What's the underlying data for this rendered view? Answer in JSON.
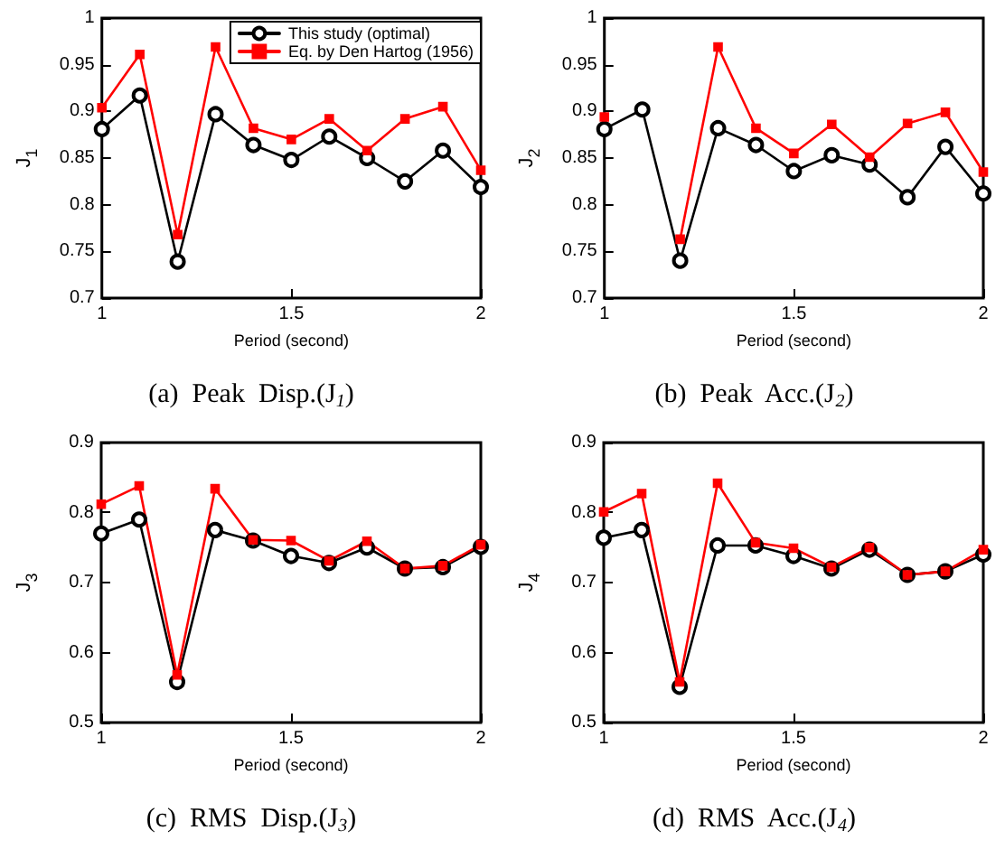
{
  "chart_data": [
    {
      "type": "line",
      "title": "(a)  Peak  Disp.(J$_{1}$)",
      "xlabel": "Period (second)",
      "ylabel": "J$_{1}$",
      "x": [
        1,
        1.1,
        1.2,
        1.3,
        1.4,
        1.5,
        1.6,
        1.7,
        1.8,
        1.9,
        2
      ],
      "xlim": [
        1,
        2
      ],
      "xticks": [
        1,
        1.5,
        2
      ],
      "ylim": [
        0.7,
        1
      ],
      "yticks": [
        0.7,
        0.75,
        0.8,
        0.85,
        0.9,
        0.95,
        1
      ],
      "legend": "top right",
      "series": [
        {
          "name": "This study (optimal)",
          "color": "#000000",
          "marker": "circle",
          "values": [
            0.881,
            0.917,
            0.739,
            0.897,
            0.864,
            0.848,
            0.873,
            0.85,
            0.825,
            0.858,
            0.819
          ]
        },
        {
          "name": "Eq. by Den Hartog (1956)",
          "color": "#ff0000",
          "marker": "square",
          "values": [
            0.904,
            0.961,
            0.768,
            0.969,
            0.882,
            0.87,
            0.892,
            0.858,
            0.892,
            0.905,
            0.837
          ]
        }
      ]
    },
    {
      "type": "line",
      "title": "(b)  Peak  Acc.(J$_{2}$)",
      "xlabel": "Period (second)",
      "ylabel": "J$_{2}$",
      "x": [
        1,
        1.1,
        1.2,
        1.3,
        1.4,
        1.5,
        1.6,
        1.7,
        1.8,
        1.9,
        2
      ],
      "xlim": [
        1,
        2
      ],
      "xticks": [
        1,
        1.5,
        2
      ],
      "ylim": [
        0.7,
        1
      ],
      "yticks": [
        0.7,
        0.75,
        0.8,
        0.85,
        0.9,
        0.95,
        1
      ],
      "series": [
        {
          "color": "#000000",
          "marker": "circle",
          "values": [
            0.881,
            0.902,
            0.74,
            0.882,
            0.864,
            0.836,
            0.853,
            0.843,
            0.808,
            0.862,
            0.812
          ]
        },
        {
          "color": "#ff0000",
          "marker": "square",
          "values": [
            0.894,
            null,
            0.763,
            0.969,
            0.882,
            0.855,
            0.886,
            0.851,
            0.887,
            0.899,
            0.835
          ]
        }
      ]
    },
    {
      "type": "line",
      "title": "(c)  RMS  Disp.(J$_{3}$)",
      "xlabel": "Period (second)",
      "ylabel": "J$_{3}$",
      "x": [
        1,
        1.1,
        1.2,
        1.3,
        1.4,
        1.5,
        1.6,
        1.7,
        1.8,
        1.9,
        2
      ],
      "xlim": [
        1,
        2
      ],
      "xticks": [
        1,
        1.5,
        2
      ],
      "ylim": [
        0.5,
        0.9
      ],
      "yticks": [
        0.5,
        0.6,
        0.7,
        0.8,
        0.9
      ],
      "series": [
        {
          "color": "#000000",
          "marker": "circle",
          "values": [
            0.77,
            0.79,
            0.558,
            0.775,
            0.76,
            0.738,
            0.728,
            0.75,
            0.72,
            0.722,
            0.751
          ]
        },
        {
          "color": "#ff0000",
          "marker": "square",
          "values": [
            0.812,
            0.838,
            0.568,
            0.834,
            0.761,
            0.76,
            0.731,
            0.759,
            0.72,
            0.724,
            0.754
          ]
        }
      ]
    },
    {
      "type": "line",
      "title": "(d)  RMS  Acc.(J$_{4}$)",
      "xlabel": "Period (second)",
      "ylabel": "J$_{4}$",
      "x": [
        1,
        1.1,
        1.2,
        1.3,
        1.4,
        1.5,
        1.6,
        1.7,
        1.8,
        1.9,
        2
      ],
      "xlim": [
        1,
        2
      ],
      "xticks": [
        1,
        1.5,
        2
      ],
      "ylim": [
        0.5,
        0.9
      ],
      "yticks": [
        0.5,
        0.6,
        0.7,
        0.8,
        0.9
      ],
      "series": [
        {
          "color": "#000000",
          "marker": "circle",
          "values": [
            0.764,
            0.775,
            0.551,
            0.753,
            0.753,
            0.738,
            0.72,
            0.747,
            0.711,
            0.716,
            0.74
          ]
        },
        {
          "color": "#ff0000",
          "marker": "square",
          "values": [
            0.801,
            0.827,
            0.558,
            0.842,
            0.757,
            0.749,
            0.722,
            0.75,
            0.711,
            0.716,
            0.747
          ]
        }
      ]
    }
  ]
}
